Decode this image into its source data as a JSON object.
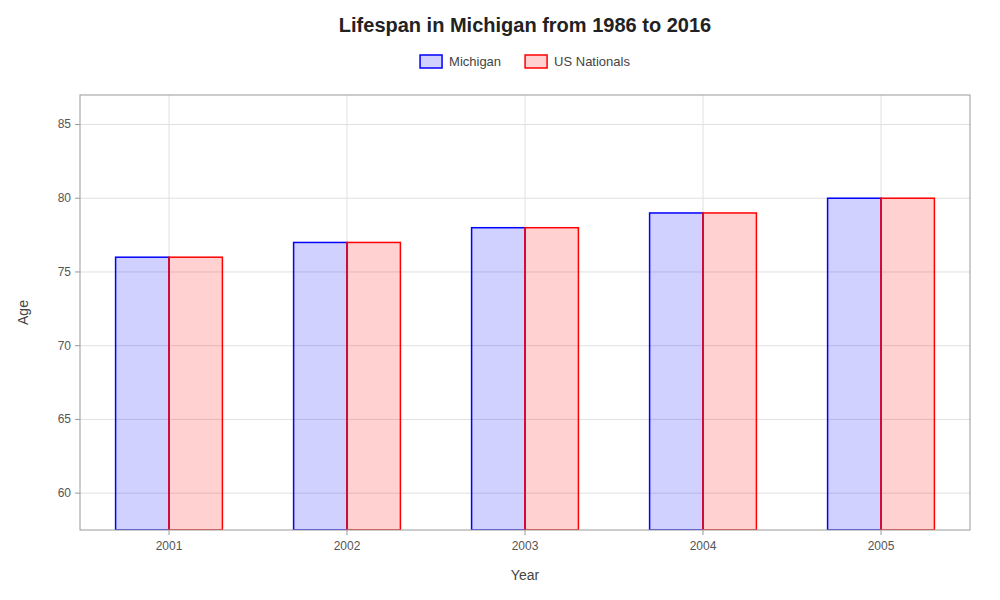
{
  "chart_data": {
    "type": "bar",
    "title": "Lifespan in Michigan from 1986 to 2016",
    "x_label": "Year",
    "y_label": "Age",
    "categories": [
      "2001",
      "2002",
      "2003",
      "2004",
      "2005"
    ],
    "series": [
      {
        "name": "Michigan",
        "color": "#0000ff",
        "values": [
          76,
          77,
          78,
          79,
          80
        ]
      },
      {
        "name": "US Nationals",
        "color": "#ff0000",
        "values": [
          76,
          77,
          78,
          79,
          80
        ]
      }
    ],
    "ylim": [
      57.5,
      87
    ],
    "yticks": [
      60,
      65,
      70,
      75,
      80,
      85
    ],
    "grid": true,
    "legend": "top"
  }
}
